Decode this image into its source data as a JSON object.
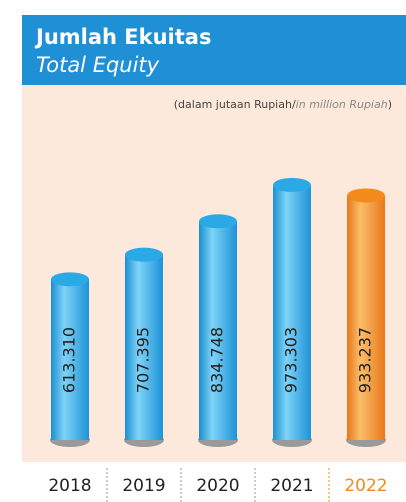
{
  "chart_data": {
    "type": "bar",
    "title": "Jumlah Ekuitas",
    "subtitle": "Total Equity",
    "unit_parts": [
      "(dalam jutaan Rupiah/",
      "in million Rupiah",
      ")"
    ],
    "categories": [
      "2018",
      "2019",
      "2020",
      "2021",
      "2022"
    ],
    "values": [
      613310,
      707395,
      834748,
      973303,
      933237
    ],
    "value_labels": [
      "613.310",
      "707.395",
      "834.748",
      "973.303",
      "933.237"
    ],
    "colors": [
      "#29a9e6",
      "#29a9e6",
      "#29a9e6",
      "#29a9e6",
      "#f28a1c"
    ]
  }
}
